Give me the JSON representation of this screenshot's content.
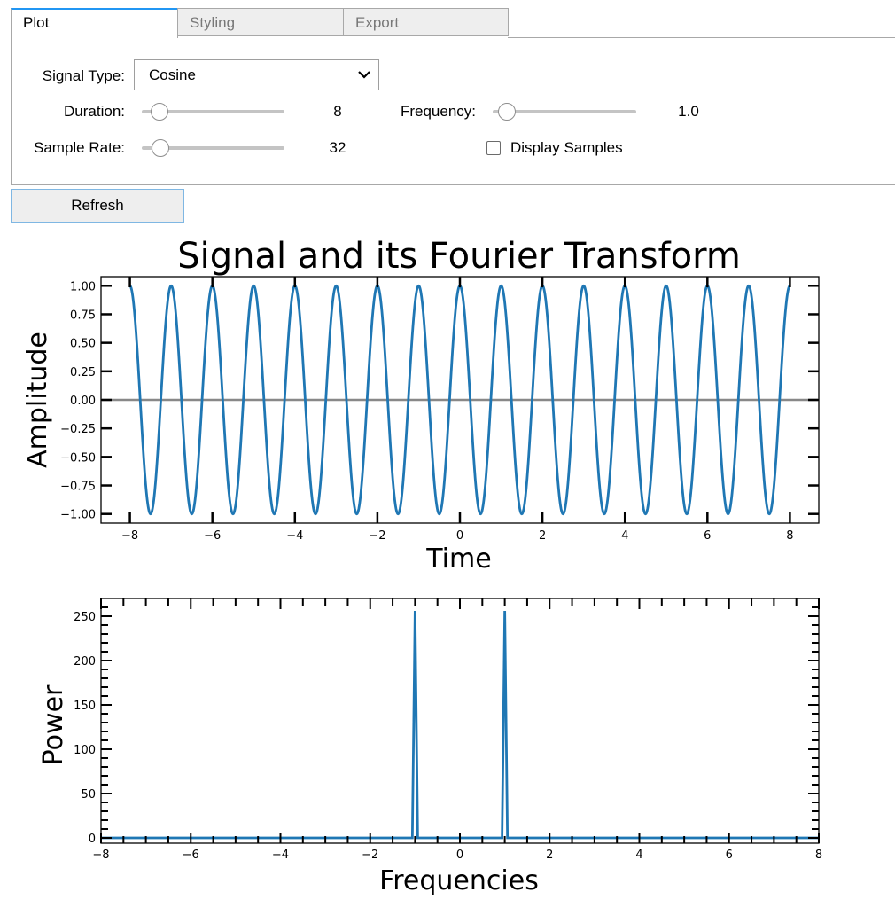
{
  "tabs": [
    "Plot",
    "Styling",
    "Export"
  ],
  "controls": {
    "signal_type_label": "Signal Type:",
    "signal_type_value": "Cosine",
    "duration_label": "Duration:",
    "duration_value": "8",
    "frequency_label": "Frequency:",
    "frequency_value": "1.0",
    "sample_rate_label": "Sample Rate:",
    "sample_rate_value": "32",
    "display_samples_label": "Display Samples",
    "display_samples_checked": false,
    "refresh_label": "Refresh"
  },
  "figure_title": "Signal and its Fourier Transform",
  "chart_data": [
    {
      "type": "line",
      "xlabel": "Time",
      "ylabel": "Amplitude",
      "xlim": [
        -8.7,
        8.7
      ],
      "ylim": [
        -1.08,
        1.08
      ],
      "xticks": [
        -8,
        -6,
        -4,
        -2,
        0,
        2,
        4,
        6,
        8
      ],
      "yticks": [
        1.0,
        0.75,
        0.5,
        0.25,
        0.0,
        -0.25,
        -0.5,
        -0.75,
        -1.0
      ],
      "ytick_labels": [
        "1.00",
        "0.75",
        "0.50",
        "0.25",
        "0.00",
        "−0.25",
        "−0.50",
        "−0.75",
        "−1.00"
      ],
      "xtick_labels": [
        "−8",
        "−6",
        "−4",
        "−2",
        "0",
        "2",
        "4",
        "6",
        "8"
      ],
      "series": [
        {
          "function": "cos(2*pi*1.0*t)",
          "x_range": [
            -8,
            8
          ],
          "color": "#1f77b4"
        }
      ],
      "reference_line": {
        "y": 0,
        "color": "#888888"
      }
    },
    {
      "type": "line",
      "xlabel": "Frequencies",
      "ylabel": "Power",
      "xlim": [
        -8,
        8
      ],
      "ylim": [
        -6,
        270
      ],
      "xticks": [
        -8,
        -6,
        -4,
        -2,
        0,
        2,
        4,
        6,
        8
      ],
      "xtick_labels": [
        "−8",
        "−6",
        "−4",
        "−2",
        "0",
        "2",
        "4",
        "6",
        "8"
      ],
      "yticks": [
        0,
        50,
        100,
        150,
        200,
        250
      ],
      "ytick_labels": [
        "0",
        "50",
        "100",
        "150",
        "200",
        "250"
      ],
      "series": [
        {
          "color": "#1f77b4",
          "points": [
            [
              -8,
              0
            ],
            [
              -1.06,
              0
            ],
            [
              -1.0,
              256
            ],
            [
              -0.94,
              0
            ],
            [
              0.94,
              0
            ],
            [
              1.0,
              256
            ],
            [
              1.06,
              0
            ],
            [
              8,
              0
            ]
          ]
        }
      ]
    }
  ]
}
